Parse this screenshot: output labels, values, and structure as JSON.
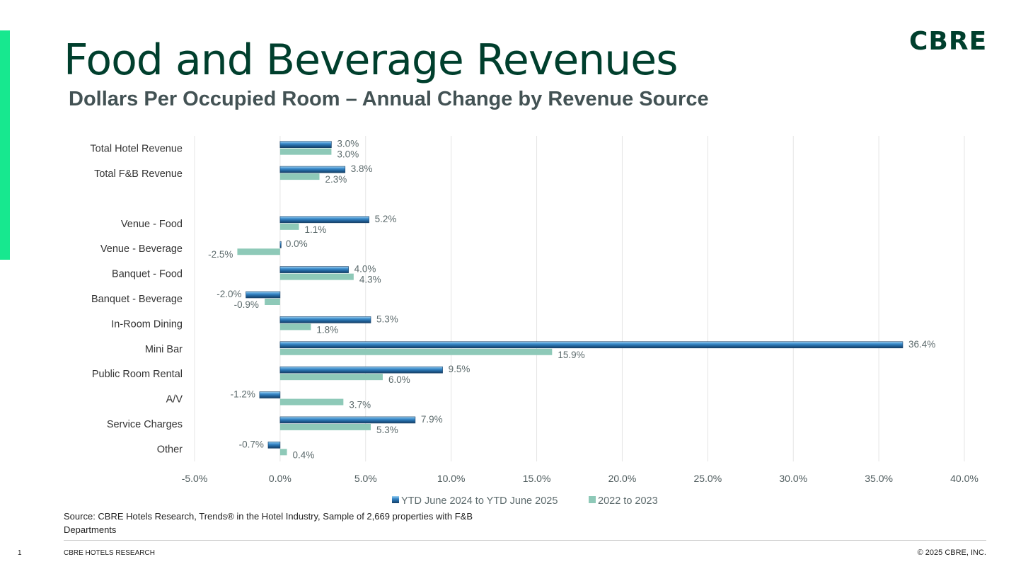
{
  "header": {
    "title": "Food and Beverage Revenues",
    "subtitle": "Dollars Per Occupied Room – Annual Change by Revenue Source",
    "logo": "CBRE"
  },
  "chart_data": {
    "type": "bar",
    "orientation": "horizontal",
    "categories": [
      "Total Hotel Revenue",
      "Total F&B Revenue",
      "",
      "Venue - Food",
      "Venue - Beverage",
      "Banquet - Food",
      "Banquet - Beverage",
      "In-Room Dining",
      "Mini Bar",
      "Public Room Rental",
      "A/V",
      "Service Charges",
      "Other"
    ],
    "series": [
      {
        "name": "YTD June 2024 to YTD June 2025",
        "color": "#1f5f96",
        "values": [
          3.0,
          3.8,
          null,
          5.2,
          0.0,
          4.0,
          -2.0,
          5.3,
          36.4,
          9.5,
          -1.2,
          7.9,
          -0.7
        ]
      },
      {
        "name": "2022 to 2023",
        "color": "#8ec9b8",
        "values": [
          3.0,
          2.3,
          null,
          1.1,
          -2.5,
          4.3,
          -0.9,
          1.8,
          15.9,
          6.0,
          3.7,
          5.3,
          0.4
        ]
      }
    ],
    "xlim": [
      -5,
      40
    ],
    "xticks": [
      "-5.0%",
      "0.0%",
      "5.0%",
      "10.0%",
      "15.0%",
      "20.0%",
      "25.0%",
      "30.0%",
      "35.0%",
      "40.0%"
    ],
    "xtick_values": [
      -5,
      0,
      5,
      10,
      15,
      20,
      25,
      30,
      35,
      40
    ],
    "grid": true,
    "legend": "bottom"
  },
  "footer": {
    "source": "Source: CBRE Hotels Research, Trends® in the Hotel Industry, Sample of 2,669 properties with F&B Departments",
    "page": "1",
    "brand": "CBRE  HOTELS RESEARCH",
    "copyright": "© 2025 CBRE, INC."
  }
}
